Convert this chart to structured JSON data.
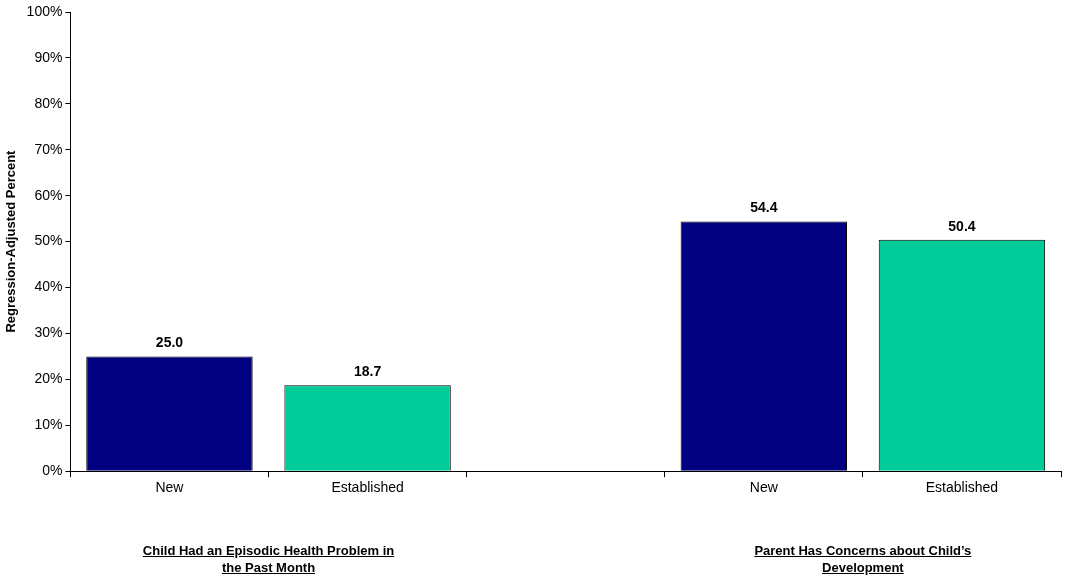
{
  "chart_data": {
    "type": "bar",
    "ylabel": "Regression-Adjusted Percent",
    "categories": [
      "New",
      "Established",
      null,
      "New",
      "Established"
    ],
    "values": [
      25.0,
      18.7,
      null,
      54.4,
      50.4
    ],
    "colors": [
      "#000080",
      "#00cc99",
      null,
      "#000080",
      "#00cc99"
    ],
    "value_labels": [
      "25.0",
      "18.7",
      null,
      "54.4",
      "50.4"
    ],
    "ylim": [
      0,
      100
    ],
    "yticks": [
      {
        "value": 0,
        "label": "0%"
      },
      {
        "value": 10,
        "label": "10%"
      },
      {
        "value": 20,
        "label": "20%"
      },
      {
        "value": 30,
        "label": "30%"
      },
      {
        "value": 40,
        "label": "40%"
      },
      {
        "value": 50,
        "label": "50%"
      },
      {
        "value": 60,
        "label": "60%"
      },
      {
        "value": 70,
        "label": "70%"
      },
      {
        "value": 80,
        "label": "80%"
      },
      {
        "value": 90,
        "label": "90%"
      },
      {
        "value": 100,
        "label": "100%"
      }
    ],
    "annotations": [
      "Child Had an Episodic Health Problem in the Past Month",
      "Parent Has Concerns about Child’s Development"
    ],
    "grid": false,
    "legend": false
  }
}
